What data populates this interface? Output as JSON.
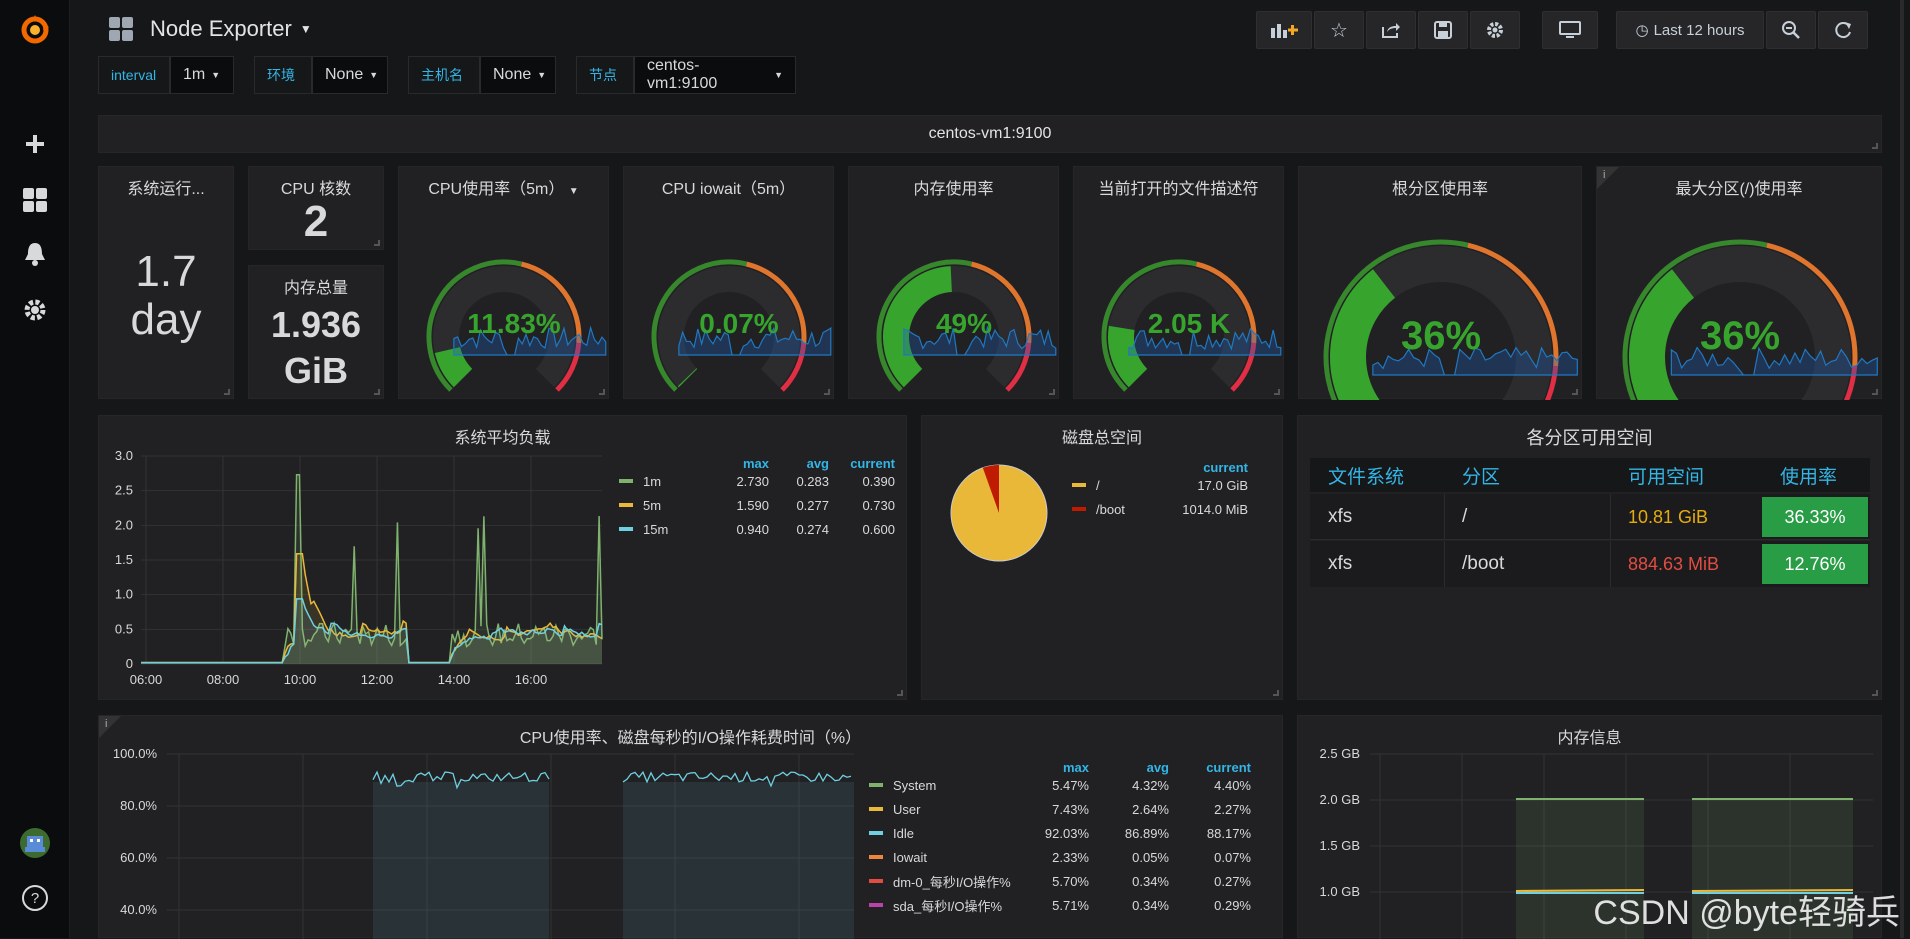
{
  "app": {
    "title": "Node Exporter"
  },
  "topbar": {
    "time_range": "Last 12 hours"
  },
  "variables": [
    {
      "label": "interval",
      "value": "1m"
    },
    {
      "label": "环境",
      "value": "None"
    },
    {
      "label": "主机名",
      "value": "None"
    },
    {
      "label": "节点",
      "value": "centos-vm1:9100"
    }
  ],
  "row_title": "centos-vm1:9100",
  "stats": {
    "uptime": {
      "title": "系统运行...",
      "value_line1": "1.7",
      "value_line2": "day"
    },
    "cpu_cores": {
      "title": "CPU 核数",
      "value": "2"
    },
    "mem_total": {
      "title": "内存总量",
      "value_line1": "1.936",
      "value_line2": "GiB"
    },
    "cpu_usage": {
      "title": "CPU使用率（5m）",
      "value": "11.83%",
      "fraction": 0.1183
    },
    "cpu_iowait": {
      "title": "CPU iowait（5m）",
      "value": "0.07%",
      "fraction": 0.0007
    },
    "mem_usage": {
      "title": "内存使用率",
      "value": "49%",
      "fraction": 0.49
    },
    "file_desc": {
      "title": "当前打开的文件描述符",
      "value": "2.05 K",
      "fraction": 0.2
    },
    "root_usage": {
      "title": "根分区使用率",
      "value": "36%",
      "fraction": 0.36
    },
    "max_part_usage": {
      "title": "最大分区(/)使用率",
      "value": "36%",
      "fraction": 0.36
    }
  },
  "load_panel": {
    "title": "系统平均负载",
    "headers": [
      "max",
      "avg",
      "current"
    ],
    "series": [
      {
        "name": "1m",
        "color": "#7eb26d",
        "max": "2.730",
        "avg": "0.283",
        "current": "0.390"
      },
      {
        "name": "5m",
        "color": "#eab839",
        "max": "1.590",
        "avg": "0.277",
        "current": "0.730"
      },
      {
        "name": "15m",
        "color": "#6ed0e0",
        "max": "0.940",
        "avg": "0.274",
        "current": "0.600"
      }
    ],
    "y_ticks": [
      "3.0",
      "2.5",
      "2.0",
      "1.5",
      "1.0",
      "0.5",
      "0"
    ],
    "x_ticks": [
      "06:00",
      "08:00",
      "10:00",
      "12:00",
      "14:00",
      "16:00"
    ]
  },
  "disk_panel": {
    "title": "磁盘总空间",
    "header": "current",
    "series": [
      {
        "name": "/",
        "color": "#eab839",
        "current": "17.0 GiB"
      },
      {
        "name": "/boot",
        "color": "#bf1b00",
        "current": "1014.0 MiB"
      }
    ]
  },
  "partition_table": {
    "title": "各分区可用空间",
    "headers": [
      "文件系统",
      "分区",
      "可用空间",
      "使用率"
    ],
    "rows": [
      {
        "fs": "xfs",
        "mount": "/",
        "avail": "10.81 GiB",
        "avail_color": "#e5ac0e",
        "usage": "36.33%"
      },
      {
        "fs": "xfs",
        "mount": "/boot",
        "avail": "884.63 MiB",
        "avail_color": "#e24d42",
        "usage": "12.76%"
      }
    ]
  },
  "cpu_io_panel": {
    "title": "CPU使用率、磁盘每秒的I/O操作耗费时间（%）",
    "headers": [
      "max",
      "avg",
      "current"
    ],
    "series": [
      {
        "name": "System",
        "color": "#7eb26d",
        "max": "5.47%",
        "avg": "4.32%",
        "current": "4.40%"
      },
      {
        "name": "User",
        "color": "#eab839",
        "max": "7.43%",
        "avg": "2.64%",
        "current": "2.27%"
      },
      {
        "name": "Idle",
        "color": "#6ed0e0",
        "max": "92.03%",
        "avg": "86.89%",
        "current": "88.17%"
      },
      {
        "name": "Iowait",
        "color": "#ef843c",
        "max": "2.33%",
        "avg": "0.05%",
        "current": "0.07%"
      },
      {
        "name": "dm-0_每秒I/O操作%",
        "color": "#e24d42",
        "max": "5.70%",
        "avg": "0.34%",
        "current": "0.27%"
      },
      {
        "name": "sda_每秒I/O操作%",
        "color": "#ba43a9",
        "max": "5.71%",
        "avg": "0.34%",
        "current": "0.29%"
      }
    ],
    "y_ticks": [
      "100.0%",
      "80.0%",
      "60.0%",
      "40.0%"
    ]
  },
  "mem_panel": {
    "title": "内存信息",
    "y_ticks": [
      "2.5 GB",
      "2.0 GB",
      "1.5 GB",
      "1.0 GB"
    ]
  },
  "watermark": "CSDN @byte轻骑兵"
}
